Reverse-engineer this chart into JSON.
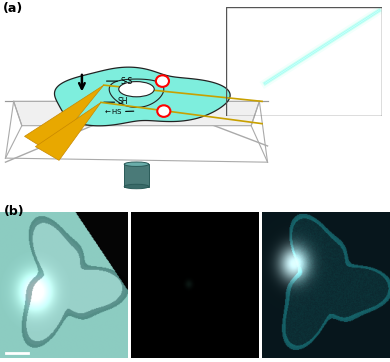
{
  "fig_width": 3.9,
  "fig_height": 3.62,
  "dpi": 100,
  "bg_color": "#ffffff",
  "label_a": "(a)",
  "label_b": "(b)",
  "panel_a": {
    "bg": "#ffffff",
    "cell_color": "#7eeedd",
    "cell_edge": "#222222",
    "needle_color": "#e8a800",
    "needle_tip_color": "#c88800",
    "platform_line_color": "#999999",
    "cylinder_color": "#4a7a78",
    "dot_color": "#ff0000",
    "inset_bg": "#000000",
    "inset_needle_color": "#00e8cc",
    "scalebar_color": "#ffffff"
  },
  "panel_b": {
    "left_bg": "#8ecec4",
    "middle_bg": "#040404",
    "right_bg": "#061418"
  }
}
